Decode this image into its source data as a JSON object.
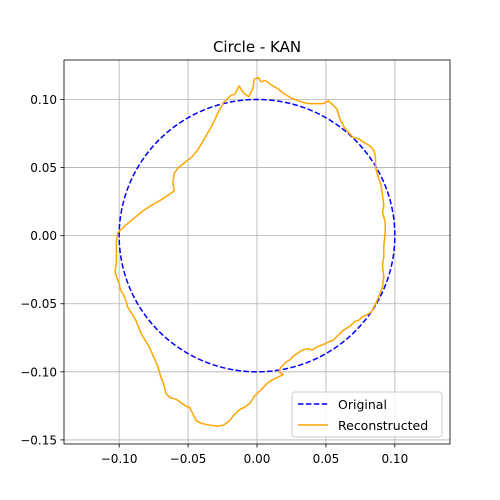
{
  "chart_data": {
    "type": "line",
    "title": "Circle - KAN",
    "xlabel": "",
    "ylabel": "",
    "xlim": [
      -0.14,
      0.14
    ],
    "ylim": [
      -0.153,
      0.129
    ],
    "grid": true,
    "legend_position": "lower-right",
    "x_ticks": [
      -0.1,
      -0.05,
      0.0,
      0.05,
      0.1
    ],
    "x_tick_labels": [
      "−0.10",
      "−0.05",
      "0.00",
      "0.05",
      "0.10"
    ],
    "y_ticks": [
      0.1,
      0.05,
      0.0,
      -0.05,
      -0.1,
      -0.15
    ],
    "y_tick_labels": [
      "0.10",
      "0.05",
      "0.00",
      "−0.05",
      "−0.10",
      "−0.15"
    ],
    "series": [
      {
        "name": "Original",
        "color": "#0000ff",
        "style": "dashed",
        "shape": "circle",
        "center": [
          0,
          0
        ],
        "radius": 0.1
      },
      {
        "name": "Reconstructed",
        "color": "#ffa500",
        "style": "solid",
        "points": [
          [
            -0.101,
            0.002
          ],
          [
            -0.095,
            0.008
          ],
          [
            -0.089,
            0.013
          ],
          [
            -0.083,
            0.018
          ],
          [
            -0.077,
            0.022
          ],
          [
            -0.07,
            0.026
          ],
          [
            -0.064,
            0.03
          ],
          [
            -0.06,
            0.033
          ],
          [
            -0.061,
            0.039
          ],
          [
            -0.06,
            0.046
          ],
          [
            -0.057,
            0.05
          ],
          [
            -0.052,
            0.054
          ],
          [
            -0.047,
            0.058
          ],
          [
            -0.043,
            0.063
          ],
          [
            -0.04,
            0.068
          ],
          [
            -0.036,
            0.075
          ],
          [
            -0.032,
            0.082
          ],
          [
            -0.028,
            0.091
          ],
          [
            -0.024,
            0.098
          ],
          [
            -0.019,
            0.103
          ],
          [
            -0.016,
            0.104
          ],
          [
            -0.013,
            0.11
          ],
          [
            -0.01,
            0.105
          ],
          [
            -0.006,
            0.102
          ],
          [
            -0.003,
            0.108
          ],
          [
            -0.002,
            0.115
          ],
          [
            0.001,
            0.116
          ],
          [
            0.003,
            0.113
          ],
          [
            0.006,
            0.114
          ],
          [
            0.01,
            0.111
          ],
          [
            0.015,
            0.108
          ],
          [
            0.02,
            0.104
          ],
          [
            0.025,
            0.101
          ],
          [
            0.03,
            0.099
          ],
          [
            0.033,
            0.098
          ],
          [
            0.037,
            0.097
          ],
          [
            0.04,
            0.097
          ],
          [
            0.044,
            0.097
          ],
          [
            0.048,
            0.097
          ],
          [
            0.052,
            0.099
          ],
          [
            0.055,
            0.096
          ],
          [
            0.058,
            0.093
          ],
          [
            0.06,
            0.086
          ],
          [
            0.063,
            0.08
          ],
          [
            0.067,
            0.075
          ],
          [
            0.07,
            0.072
          ],
          [
            0.074,
            0.071
          ],
          [
            0.077,
            0.069
          ],
          [
            0.08,
            0.067
          ],
          [
            0.083,
            0.065
          ],
          [
            0.085,
            0.062
          ],
          [
            0.086,
            0.057
          ],
          [
            0.086,
            0.05
          ],
          [
            0.088,
            0.043
          ],
          [
            0.09,
            0.037
          ],
          [
            0.091,
            0.03
          ],
          [
            0.092,
            0.022
          ],
          [
            0.091,
            0.017
          ],
          [
            0.093,
            0.01
          ],
          [
            0.093,
            0.002
          ],
          [
            0.092,
            -0.007
          ],
          [
            0.092,
            -0.015
          ],
          [
            0.091,
            -0.022
          ],
          [
            0.092,
            -0.03
          ],
          [
            0.091,
            -0.038
          ],
          [
            0.089,
            -0.043
          ],
          [
            0.087,
            -0.048
          ],
          [
            0.085,
            -0.052
          ],
          [
            0.083,
            -0.056
          ],
          [
            0.08,
            -0.058
          ],
          [
            0.076,
            -0.06
          ],
          [
            0.074,
            -0.062
          ],
          [
            0.071,
            -0.063
          ],
          [
            0.068,
            -0.066
          ],
          [
            0.065,
            -0.068
          ],
          [
            0.062,
            -0.07
          ],
          [
            0.058,
            -0.074
          ],
          [
            0.055,
            -0.077
          ],
          [
            0.052,
            -0.078
          ],
          [
            0.048,
            -0.08
          ],
          [
            0.043,
            -0.082
          ],
          [
            0.04,
            -0.084
          ],
          [
            0.037,
            -0.083
          ],
          [
            0.033,
            -0.084
          ],
          [
            0.03,
            -0.086
          ],
          [
            0.027,
            -0.088
          ],
          [
            0.024,
            -0.091
          ],
          [
            0.021,
            -0.093
          ],
          [
            0.019,
            -0.095
          ],
          [
            0.017,
            -0.097
          ],
          [
            0.016,
            -0.1
          ],
          [
            0.019,
            -0.102
          ],
          [
            0.015,
            -0.104
          ],
          [
            0.011,
            -0.106
          ],
          [
            0.008,
            -0.108
          ],
          [
            0.004,
            -0.112
          ],
          [
            0.001,
            -0.115
          ],
          [
            -0.002,
            -0.118
          ],
          [
            -0.005,
            -0.123
          ],
          [
            -0.009,
            -0.126
          ],
          [
            -0.013,
            -0.128
          ],
          [
            -0.017,
            -0.132
          ],
          [
            -0.02,
            -0.136
          ],
          [
            -0.024,
            -0.139
          ],
          [
            -0.029,
            -0.14
          ],
          [
            -0.035,
            -0.139
          ],
          [
            -0.04,
            -0.138
          ],
          [
            -0.044,
            -0.136
          ],
          [
            -0.047,
            -0.13
          ],
          [
            -0.049,
            -0.126
          ],
          [
            -0.052,
            -0.125
          ],
          [
            -0.056,
            -0.122
          ],
          [
            -0.059,
            -0.12
          ],
          [
            -0.063,
            -0.119
          ],
          [
            -0.066,
            -0.116
          ],
          [
            -0.067,
            -0.112
          ],
          [
            -0.068,
            -0.108
          ],
          [
            -0.07,
            -0.103
          ],
          [
            -0.072,
            -0.096
          ],
          [
            -0.075,
            -0.089
          ],
          [
            -0.078,
            -0.082
          ],
          [
            -0.081,
            -0.077
          ],
          [
            -0.084,
            -0.072
          ],
          [
            -0.086,
            -0.067
          ],
          [
            -0.088,
            -0.062
          ],
          [
            -0.091,
            -0.057
          ],
          [
            -0.094,
            -0.052
          ],
          [
            -0.095,
            -0.048
          ],
          [
            -0.097,
            -0.043
          ],
          [
            -0.099,
            -0.04
          ],
          [
            -0.1,
            -0.035
          ],
          [
            -0.102,
            -0.03
          ],
          [
            -0.103,
            -0.026
          ],
          [
            -0.102,
            -0.02
          ],
          [
            -0.102,
            -0.012
          ],
          [
            -0.102,
            -0.004
          ],
          [
            -0.101,
            0.002
          ]
        ]
      }
    ]
  }
}
